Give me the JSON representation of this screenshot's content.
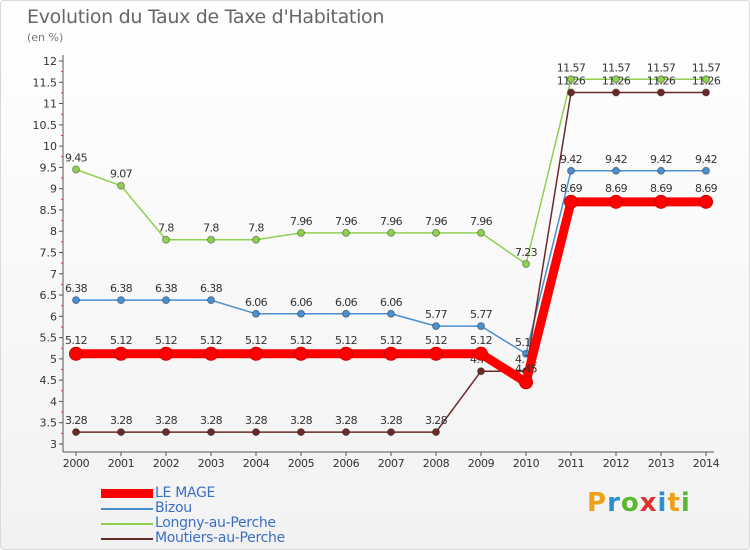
{
  "title": "Evolution du Taux de Taxe d'Habitation",
  "subtitle": "(en %)",
  "brand": {
    "letters": [
      "P",
      "r",
      "o",
      "x",
      "i",
      "t",
      "i"
    ],
    "colors": [
      "#f0a018",
      "#2c8fd6",
      "#5bb832",
      "#e03030",
      "#2c8fd6",
      "#f0a018",
      "#5bb832"
    ]
  },
  "chart_data": {
    "type": "line",
    "x": [
      2000,
      2001,
      2002,
      2003,
      2004,
      2005,
      2006,
      2007,
      2008,
      2009,
      2010,
      2011,
      2012,
      2013,
      2014
    ],
    "ylim": [
      3,
      12
    ],
    "yticks": [
      3,
      3.5,
      4,
      4.5,
      5,
      5.5,
      6,
      6.5,
      7,
      7.5,
      8,
      8.5,
      9,
      9.5,
      10,
      10.5,
      11,
      11.5,
      12
    ],
    "ytick_labels": [
      "3",
      "3.5",
      "4",
      "4.5",
      "5",
      "5.5",
      "6",
      "6.5",
      "7",
      "7.5",
      "8",
      "8.5",
      "9",
      "9.5",
      "10",
      "10.5",
      "11",
      "11.5",
      "12"
    ],
    "grid": false,
    "legend_position": "bottom-left",
    "series": [
      {
        "name": "Longny-au-Perche",
        "color": "#8fd14f",
        "values": [
          9.45,
          9.07,
          7.8,
          7.8,
          7.8,
          7.96,
          7.96,
          7.96,
          7.96,
          7.96,
          7.23,
          11.57,
          11.57,
          11.57,
          11.57
        ],
        "labels": [
          "9.45",
          "9.07",
          "7.8",
          "7.8",
          "7.8",
          "7.96",
          "7.96",
          "7.96",
          "7.96",
          "7.96",
          "7.23",
          "11.57",
          "11.57",
          "11.57",
          "11.57"
        ]
      },
      {
        "name": "Bizou",
        "color": "#4a8fcf",
        "values": [
          6.38,
          6.38,
          6.38,
          6.38,
          6.06,
          6.06,
          6.06,
          6.06,
          5.77,
          5.77,
          5.12,
          9.42,
          9.42,
          9.42,
          9.42
        ],
        "labels": [
          "6.38",
          "6.38",
          "6.38",
          "6.38",
          "6.06",
          "6.06",
          "6.06",
          "6.06",
          "5.77",
          "5.77",
          "5.12",
          "9.42",
          "9.42",
          "9.42",
          "9.42"
        ]
      },
      {
        "name": "Moutiers-au-Perche",
        "color": "#6b2a2a",
        "values": [
          3.28,
          3.28,
          3.28,
          3.28,
          3.28,
          3.28,
          3.28,
          3.28,
          3.28,
          4.71,
          4.71,
          11.26,
          11.26,
          11.26,
          11.26
        ],
        "labels": [
          "3.28",
          "3.28",
          "3.28",
          "3.28",
          "3.28",
          "3.28",
          "3.28",
          "3.28",
          "3.28",
          "4.71",
          "4.71",
          "11.26",
          "11.26",
          "11.26",
          "11.26"
        ]
      },
      {
        "name": "LE MAGE",
        "color": "#ff0000",
        "values": [
          5.12,
          5.12,
          5.12,
          5.12,
          5.12,
          5.12,
          5.12,
          5.12,
          5.12,
          5.12,
          4.45,
          8.69,
          8.69,
          8.69,
          8.69
        ],
        "labels": [
          "5.12",
          "5.12",
          "5.12",
          "5.12",
          "5.12",
          "5.12",
          "5.12",
          "5.12",
          "5.12",
          "5.12",
          "4.45",
          "8.69",
          "8.69",
          "8.69",
          "8.69"
        ]
      }
    ],
    "legend": [
      "LE MAGE",
      "Bizou",
      "Longny-au-Perche",
      "Moutiers-au-Perche"
    ]
  }
}
